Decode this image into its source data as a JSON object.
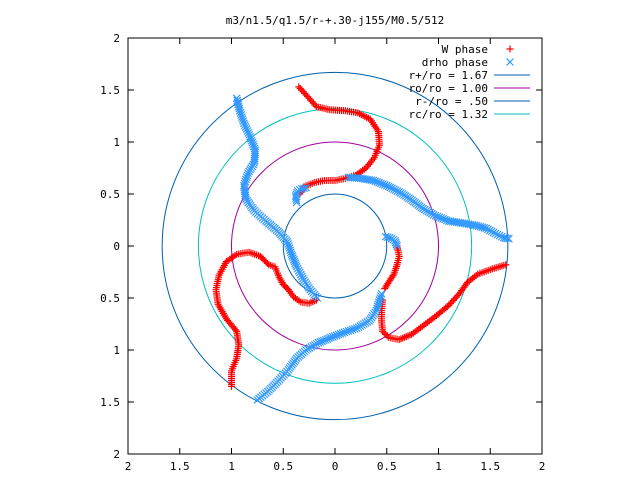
{
  "chart_data": {
    "type": "scatter",
    "title": "m3/n1.5/q1.5/r-+.30-j155/M0.5/512",
    "xlabel": "",
    "ylabel": "",
    "xlim": [
      -2,
      2
    ],
    "ylim": [
      -2,
      2
    ],
    "x_tick_labels": [
      "2",
      "1.5",
      "1",
      "0.5",
      "0",
      "0.5",
      "1",
      "1.5",
      "2"
    ],
    "y_tick_labels": [
      "2",
      "1.5",
      "1",
      "0.5",
      "0",
      "0.5",
      "1",
      "1.5",
      "2"
    ],
    "x_ticks": [
      -2,
      -1.5,
      -1,
      -0.5,
      0,
      0.5,
      1,
      1.5,
      2
    ],
    "y_ticks": [
      2,
      1.5,
      1,
      0.5,
      0,
      -0.5,
      -1,
      -1.5,
      -2
    ],
    "grid": false,
    "legend_position": "top-right",
    "circles": [
      {
        "name": "r+/ro = 1.67",
        "radius": 1.67,
        "color": "#0060ad"
      },
      {
        "name": "ro/ro = 1.00",
        "radius": 1.0,
        "color": "#a000a0"
      },
      {
        "name": "r-/ro = .50",
        "radius": 0.5,
        "color": "#0060ad"
      },
      {
        "name": "rc/ro = 1.32",
        "radius": 1.32,
        "color": "#00c0c0"
      }
    ],
    "series": [
      {
        "name": "W phase",
        "marker": "plus",
        "color": "#ff0000",
        "points": [
          [
            -0.35,
            1.53
          ],
          [
            -0.25,
            1.42
          ],
          [
            -0.18,
            1.34
          ],
          [
            -0.05,
            1.31
          ],
          [
            0.1,
            1.3
          ],
          [
            0.22,
            1.28
          ],
          [
            0.34,
            1.22
          ],
          [
            0.42,
            1.1
          ],
          [
            0.43,
            0.97
          ],
          [
            0.38,
            0.85
          ],
          [
            0.3,
            0.75
          ],
          [
            0.2,
            0.68
          ],
          [
            0.1,
            0.65
          ],
          [
            0.0,
            0.63
          ],
          [
            -0.1,
            0.63
          ],
          [
            -0.2,
            0.61
          ],
          [
            -0.3,
            0.57
          ],
          [
            -0.34,
            0.5
          ],
          [
            1.65,
            -0.18
          ],
          [
            1.52,
            -0.22
          ],
          [
            1.38,
            -0.27
          ],
          [
            1.28,
            -0.35
          ],
          [
            1.2,
            -0.46
          ],
          [
            1.1,
            -0.57
          ],
          [
            0.98,
            -0.67
          ],
          [
            0.86,
            -0.76
          ],
          [
            0.74,
            -0.85
          ],
          [
            0.62,
            -0.9
          ],
          [
            0.52,
            -0.88
          ],
          [
            0.46,
            -0.82
          ],
          [
            0.45,
            -0.72
          ],
          [
            0.45,
            -0.62
          ],
          [
            0.46,
            -0.52
          ],
          [
            0.6,
            0.0
          ],
          [
            0.62,
            -0.1
          ],
          [
            0.6,
            -0.18
          ],
          [
            0.57,
            -0.27
          ],
          [
            0.53,
            -0.33
          ],
          [
            0.48,
            -0.41
          ],
          [
            -1.0,
            -1.35
          ],
          [
            -1.0,
            -1.2
          ],
          [
            -0.95,
            -1.08
          ],
          [
            -0.93,
            -0.95
          ],
          [
            -0.95,
            -0.82
          ],
          [
            -1.05,
            -0.7
          ],
          [
            -1.13,
            -0.56
          ],
          [
            -1.15,
            -0.42
          ],
          [
            -1.12,
            -0.28
          ],
          [
            -1.05,
            -0.15
          ],
          [
            -0.95,
            -0.08
          ],
          [
            -0.83,
            -0.06
          ],
          [
            -0.72,
            -0.1
          ],
          [
            -0.64,
            -0.18
          ],
          [
            -0.58,
            -0.2
          ],
          [
            -0.54,
            -0.3
          ],
          [
            -0.5,
            -0.37
          ],
          [
            -0.45,
            -0.42
          ],
          [
            -0.4,
            -0.49
          ],
          [
            -0.33,
            -0.54
          ],
          [
            -0.25,
            -0.55
          ],
          [
            -0.18,
            -0.52
          ]
        ]
      },
      {
        "name": "drho phase",
        "marker": "cross",
        "color": "#3399ff",
        "points": [
          [
            -0.95,
            1.42
          ],
          [
            -0.92,
            1.3
          ],
          [
            -0.88,
            1.18
          ],
          [
            -0.82,
            1.05
          ],
          [
            -0.77,
            0.92
          ],
          [
            -0.78,
            0.8
          ],
          [
            -0.84,
            0.7
          ],
          [
            -0.88,
            0.58
          ],
          [
            -0.86,
            0.45
          ],
          [
            -0.78,
            0.34
          ],
          [
            -0.67,
            0.24
          ],
          [
            -0.55,
            0.14
          ],
          [
            -0.46,
            0.04
          ],
          [
            -0.42,
            -0.08
          ],
          [
            -0.37,
            -0.2
          ],
          [
            -0.3,
            -0.33
          ],
          [
            -0.24,
            -0.42
          ],
          [
            -0.17,
            -0.5
          ],
          [
            0.13,
            0.66
          ],
          [
            0.25,
            0.65
          ],
          [
            0.37,
            0.63
          ],
          [
            0.5,
            0.58
          ],
          [
            0.62,
            0.52
          ],
          [
            0.73,
            0.45
          ],
          [
            0.85,
            0.36
          ],
          [
            0.97,
            0.29
          ],
          [
            1.1,
            0.24
          ],
          [
            1.23,
            0.22
          ],
          [
            1.35,
            0.2
          ],
          [
            1.46,
            0.17
          ],
          [
            1.55,
            0.12
          ],
          [
            1.63,
            0.08
          ],
          [
            1.68,
            0.07
          ],
          [
            -0.37,
            0.42
          ],
          [
            -0.38,
            0.48
          ],
          [
            -0.36,
            0.53
          ],
          [
            -0.32,
            0.55
          ],
          [
            -0.28,
            0.56
          ],
          [
            -0.75,
            -1.48
          ],
          [
            -0.65,
            -1.4
          ],
          [
            -0.55,
            -1.3
          ],
          [
            -0.45,
            -1.19
          ],
          [
            -0.37,
            -1.08
          ],
          [
            -0.28,
            -1.0
          ],
          [
            -0.16,
            -0.93
          ],
          [
            -0.04,
            -0.88
          ],
          [
            0.09,
            -0.83
          ],
          [
            0.21,
            -0.79
          ],
          [
            0.33,
            -0.72
          ],
          [
            0.4,
            -0.62
          ],
          [
            0.43,
            -0.52
          ],
          [
            0.45,
            -0.46
          ],
          [
            0.49,
            0.09
          ],
          [
            0.53,
            0.08
          ],
          [
            0.58,
            0.05
          ],
          [
            0.6,
            0.0
          ]
        ]
      }
    ]
  }
}
